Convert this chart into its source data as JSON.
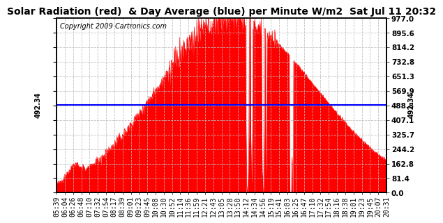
{
  "title": "Solar Radiation (red)  & Day Average (blue) per Minute W/m2  Sat Jul 11 20:32",
  "copyright": "Copyright 2009 Cartronics.com",
  "y_max": 977.0,
  "y_min": 0.0,
  "day_average": 492.34,
  "fill_color": "#FF0000",
  "avg_line_color": "#0000FF",
  "bg_color": "#FFFFFF",
  "grid_color": "#BBBBBB",
  "right_yticks": [
    0.0,
    81.4,
    162.8,
    244.2,
    325.7,
    407.1,
    488.5,
    569.9,
    651.3,
    732.8,
    814.2,
    895.6,
    977.0
  ],
  "x_tick_labels": [
    "05:39",
    "06:04",
    "06:26",
    "06:48",
    "07:10",
    "07:32",
    "07:54",
    "08:17",
    "08:39",
    "09:01",
    "09:23",
    "09:45",
    "10:08",
    "10:30",
    "10:52",
    "11:14",
    "11:36",
    "11:59",
    "12:21",
    "12:43",
    "13:05",
    "13:28",
    "13:50",
    "14:12",
    "14:34",
    "14:56",
    "15:19",
    "15:41",
    "16:03",
    "16:25",
    "16:47",
    "17:10",
    "17:32",
    "17:54",
    "18:16",
    "18:38",
    "19:01",
    "19:23",
    "19:45",
    "20:07",
    "20:31"
  ],
  "left_label": "492.34",
  "right_label": "492.34",
  "avg_label_fontsize": 7,
  "title_fontsize": 10,
  "tick_fontsize": 7.5,
  "copyright_fontsize": 7
}
